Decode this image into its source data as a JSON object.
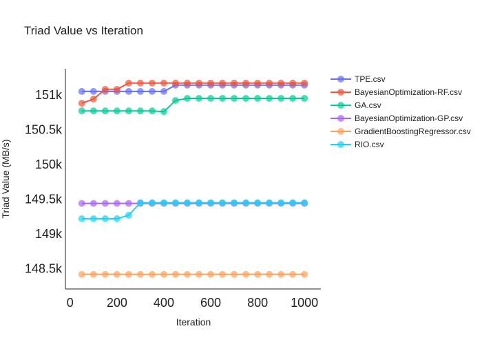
{
  "chart_data": {
    "type": "line",
    "title": "Triad Value vs Iteration",
    "xlabel": "Iteration",
    "ylabel": "Triad Value (MB/s)",
    "xlim": [
      -20,
      1070
    ],
    "ylim": [
      148210,
      151375
    ],
    "xticks": [
      0,
      200,
      400,
      600,
      800,
      1000
    ],
    "xtick_labels": [
      "0",
      "200",
      "400",
      "600",
      "800",
      "1000"
    ],
    "yticks": [
      148500,
      149000,
      149500,
      150000,
      150500,
      151000
    ],
    "ytick_labels": [
      "148.5k",
      "149k",
      "149.5k",
      "150k",
      "150.5k",
      "151k"
    ],
    "grid": false,
    "legend_position": "top-right",
    "x": [
      50,
      100,
      150,
      200,
      250,
      300,
      350,
      400,
      450,
      500,
      550,
      600,
      650,
      700,
      750,
      800,
      850,
      900,
      950,
      1000
    ],
    "series": [
      {
        "name": "TPE.csv",
        "color": "#636EFA",
        "values": [
          151050,
          151050,
          151050,
          151050,
          151050,
          151050,
          151050,
          151050,
          151140,
          151140,
          151140,
          151140,
          151140,
          151140,
          151140,
          151140,
          151140,
          151140,
          151140,
          151140
        ]
      },
      {
        "name": "BayesianOptimization-RF.csv",
        "color": "#EF553B",
        "values": [
          150880,
          150940,
          151080,
          151080,
          151170,
          151170,
          151170,
          151170,
          151170,
          151170,
          151170,
          151170,
          151170,
          151170,
          151170,
          151170,
          151170,
          151170,
          151170,
          151170
        ]
      },
      {
        "name": "GA.csv",
        "color": "#00CC96",
        "values": [
          150770,
          150770,
          150770,
          150770,
          150770,
          150770,
          150770,
          150760,
          150920,
          150950,
          150950,
          150950,
          150950,
          150950,
          150950,
          150950,
          150950,
          150950,
          150950,
          150950
        ]
      },
      {
        "name": "BayesianOptimization-GP.csv",
        "color": "#AB63FA",
        "values": [
          149440,
          149440,
          149440,
          149440,
          149440,
          149440,
          149440,
          149440,
          149440,
          149440,
          149440,
          149440,
          149440,
          149440,
          149440,
          149440,
          149440,
          149440,
          149440,
          149440
        ]
      },
      {
        "name": "GradientBoostingRegressor.csv",
        "color": "#FFA15A",
        "values": [
          148420,
          148420,
          148420,
          148420,
          148420,
          148420,
          148420,
          148420,
          148420,
          148420,
          148420,
          148420,
          148420,
          148420,
          148420,
          148420,
          148420,
          148420,
          148420,
          148420
        ]
      },
      {
        "name": "RIO.csv",
        "color": "#19D3F3",
        "values": [
          149220,
          149220,
          149220,
          149220,
          149270,
          149450,
          149450,
          149450,
          149450,
          149450,
          149450,
          149450,
          149450,
          149450,
          149450,
          149450,
          149450,
          149450,
          149450,
          149450
        ]
      }
    ]
  }
}
